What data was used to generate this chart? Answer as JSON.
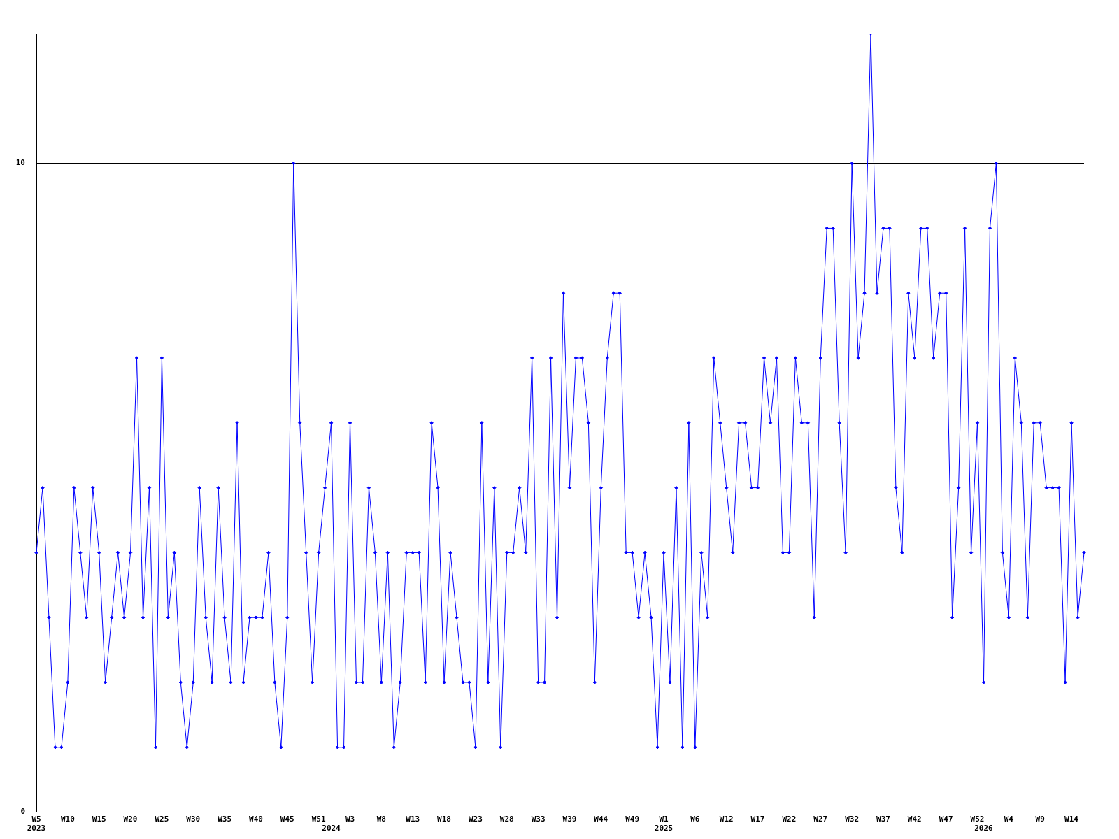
{
  "chart_data": {
    "type": "line",
    "categories": [
      "W5\n2023",
      null,
      null,
      null,
      null,
      "W10",
      null,
      null,
      null,
      null,
      "W15",
      null,
      null,
      null,
      null,
      "W20",
      null,
      null,
      null,
      null,
      "W25",
      null,
      null,
      null,
      null,
      "W30",
      null,
      null,
      null,
      null,
      "W35",
      null,
      null,
      null,
      null,
      "W40",
      null,
      null,
      null,
      null,
      "W45",
      null,
      null,
      null,
      null,
      "W51",
      null,
      "\n2024",
      null,
      null,
      "W3",
      null,
      null,
      null,
      null,
      "W8",
      null,
      null,
      null,
      null,
      "W13",
      null,
      null,
      null,
      null,
      "W18",
      null,
      null,
      null,
      null,
      "W23",
      null,
      null,
      null,
      null,
      "W28",
      null,
      null,
      null,
      null,
      "W33",
      null,
      null,
      null,
      null,
      "W39",
      null,
      null,
      null,
      null,
      "W44",
      null,
      null,
      null,
      null,
      "W49",
      null,
      null,
      null,
      null,
      "W1\n2025",
      null,
      null,
      null,
      null,
      "W6",
      null,
      null,
      null,
      null,
      "W12",
      null,
      null,
      null,
      null,
      "W17",
      null,
      null,
      null,
      null,
      "W22",
      null,
      null,
      null,
      null,
      "W27",
      null,
      null,
      null,
      null,
      "W32",
      null,
      null,
      null,
      null,
      "W37",
      null,
      null,
      null,
      null,
      "W42",
      null,
      null,
      null,
      null,
      "W47",
      null,
      null,
      null,
      null,
      "W52",
      "\n2026",
      null,
      null,
      null,
      "W4",
      null,
      null,
      null,
      null,
      "W9",
      null,
      null,
      null,
      null,
      "W14",
      null,
      null
    ],
    "series": [
      {
        "color": "#0000ff",
        "values": [
          4,
          5,
          3,
          1,
          1,
          2,
          5,
          4,
          3,
          5,
          4,
          2,
          3,
          4,
          3,
          4,
          7,
          3,
          5,
          1,
          7,
          3,
          4,
          2,
          1,
          2,
          5,
          3,
          2,
          5,
          3,
          2,
          6,
          2,
          3,
          3,
          3,
          4,
          2,
          1,
          3,
          10,
          6,
          4,
          2,
          4,
          5,
          6,
          1,
          1,
          6,
          2,
          2,
          5,
          4,
          2,
          4,
          1,
          2,
          4,
          4,
          4,
          2,
          6,
          5,
          2,
          4,
          3,
          2,
          2,
          1,
          6,
          2,
          5,
          1,
          4,
          4,
          5,
          4,
          7,
          2,
          2,
          7,
          3,
          8,
          5,
          7,
          7,
          6,
          2,
          5,
          7,
          8,
          8,
          4,
          4,
          3,
          4,
          3,
          1,
          4,
          2,
          5,
          1,
          6,
          1,
          4,
          3,
          7,
          6,
          5,
          4,
          6,
          6,
          5,
          5,
          7,
          6,
          7,
          4,
          4,
          7,
          6,
          6,
          3,
          7,
          9,
          9,
          6,
          4,
          10,
          7,
          8,
          12,
          8,
          9,
          9,
          5,
          4,
          8,
          7,
          9,
          9,
          7,
          8,
          8,
          3,
          5,
          9,
          4,
          6,
          2,
          9,
          10,
          4,
          3,
          7,
          6,
          3,
          6,
          6,
          5,
          5,
          5,
          2,
          6,
          3,
          4
        ]
      }
    ],
    "ylim": [
      0,
      12
    ],
    "yticks": [
      0,
      10
    ],
    "grid": "y",
    "marker": "diamond",
    "line_style": "solid"
  }
}
